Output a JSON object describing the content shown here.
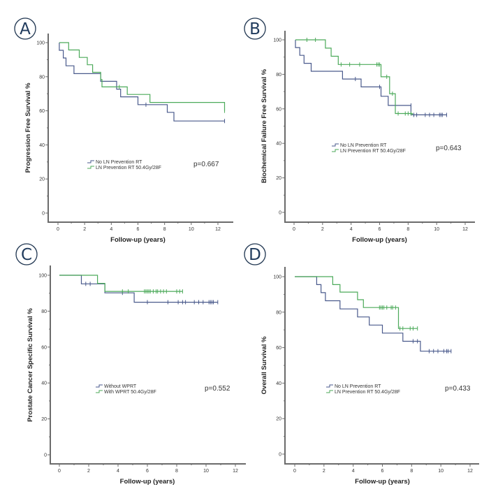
{
  "figure": {
    "colors": {
      "no_ln": "#4a5a8c",
      "ln": "#4caa5a",
      "axis": "#6b6b6b"
    }
  },
  "chart_data": [
    {
      "panel": "A",
      "type": "line",
      "subtype": "kaplan-meier",
      "title": "",
      "xlabel": "Follow-up (years)",
      "ylabel": "Progression Free Survival %",
      "xlim": [
        -0.5,
        13
      ],
      "ylim": [
        -5,
        105
      ],
      "xticks": [
        0,
        2,
        4,
        6,
        8,
        10,
        12
      ],
      "yticks": [
        0,
        20,
        40,
        60,
        80,
        100
      ],
      "legend_position": "center-left",
      "p_value": "p=0.667",
      "series": [
        {
          "name": "No LN Prevention RT",
          "color_key": "no_ln",
          "steps": [
            [
              0.1,
              100
            ],
            [
              0.1,
              95.5
            ],
            [
              0.4,
              95.5
            ],
            [
              0.4,
              91
            ],
            [
              0.6,
              91
            ],
            [
              0.6,
              86.4
            ],
            [
              1.2,
              86.4
            ],
            [
              1.2,
              81.8
            ],
            [
              3.2,
              81.8
            ],
            [
              3.2,
              77.3
            ],
            [
              4.4,
              77.3
            ],
            [
              4.4,
              72.7
            ],
            [
              4.7,
              72.7
            ],
            [
              4.7,
              68.2
            ],
            [
              6.0,
              68.2
            ],
            [
              6.0,
              63.6
            ],
            [
              8.2,
              63.6
            ],
            [
              8.2,
              59.1
            ],
            [
              8.7,
              59.1
            ],
            [
              8.7,
              54
            ],
            [
              12.5,
              54
            ]
          ],
          "censored": [
            [
              6.6,
              63.6
            ],
            [
              12.5,
              54
            ]
          ]
        },
        {
          "name": "LN Prevention RT 50.4Gy/28F",
          "color_key": "ln",
          "steps": [
            [
              0.1,
              100
            ],
            [
              0.8,
              100
            ],
            [
              0.8,
              95.7
            ],
            [
              1.6,
              95.7
            ],
            [
              1.6,
              91.3
            ],
            [
              2.2,
              91.3
            ],
            [
              2.2,
              87
            ],
            [
              2.6,
              87
            ],
            [
              2.6,
              82.6
            ],
            [
              3.2,
              82.6
            ],
            [
              3.2,
              78.3
            ],
            [
              3.3,
              78.3
            ],
            [
              3.3,
              74
            ],
            [
              5.2,
              74
            ],
            [
              5.2,
              69.6
            ],
            [
              6.9,
              69.6
            ],
            [
              6.9,
              64.9
            ],
            [
              12.5,
              64.9
            ],
            [
              12.5,
              60
            ]
          ],
          "censored": [
            [
              4.6,
              74
            ],
            [
              12.5,
              60
            ]
          ]
        }
      ]
    },
    {
      "panel": "B",
      "type": "line",
      "subtype": "kaplan-meier",
      "title": "",
      "xlabel": "Follow-up (years)",
      "ylabel": "Biochemical Failure Free Survival %",
      "xlim": [
        -0.5,
        13
      ],
      "ylim": [
        -5,
        105
      ],
      "xticks": [
        0,
        2,
        4,
        6,
        8,
        10,
        12
      ],
      "yticks": [
        0,
        20,
        40,
        60,
        80,
        100
      ],
      "legend_position": "center-left",
      "p_value": "p=0.643",
      "series": [
        {
          "name": "No LN Prevention RT",
          "color_key": "no_ln",
          "steps": [
            [
              0.1,
              100
            ],
            [
              0.1,
              95.5
            ],
            [
              0.4,
              95.5
            ],
            [
              0.4,
              91
            ],
            [
              0.7,
              91
            ],
            [
              0.7,
              86.4
            ],
            [
              1.2,
              86.4
            ],
            [
              1.2,
              81.8
            ],
            [
              3.4,
              81.8
            ],
            [
              3.4,
              77.3
            ],
            [
              4.7,
              77.3
            ],
            [
              4.7,
              72.7
            ],
            [
              6.1,
              72.7
            ],
            [
              6.1,
              67.3
            ],
            [
              6.6,
              67.3
            ],
            [
              6.6,
              62
            ],
            [
              8.2,
              62
            ],
            [
              8.2,
              56.5
            ],
            [
              10.7,
              56.5
            ]
          ],
          "censored": [
            [
              4.3,
              77.3
            ],
            [
              6.0,
              72.7
            ],
            [
              8.2,
              62
            ],
            [
              8.4,
              56.5
            ],
            [
              8.6,
              56.5
            ],
            [
              9.2,
              56.5
            ],
            [
              9.5,
              56.5
            ],
            [
              9.8,
              56.5
            ],
            [
              10.2,
              56.5
            ],
            [
              10.3,
              56.5
            ],
            [
              10.4,
              56.5
            ],
            [
              10.7,
              56.5
            ]
          ]
        },
        {
          "name": "LN Prevention RT 50.4Gy/28F",
          "color_key": "ln",
          "steps": [
            [
              0.1,
              100
            ],
            [
              2.2,
              100
            ],
            [
              2.2,
              95.2
            ],
            [
              2.6,
              95.2
            ],
            [
              2.6,
              90.5
            ],
            [
              3.1,
              90.5
            ],
            [
              3.1,
              85.7
            ],
            [
              6.1,
              85.7
            ],
            [
              6.1,
              78.6
            ],
            [
              6.7,
              78.6
            ],
            [
              6.7,
              68.8
            ],
            [
              7.1,
              68.8
            ],
            [
              7.1,
              57.3
            ],
            [
              8.3,
              57.3
            ],
            [
              8.3,
              56.5
            ]
          ],
          "censored": [
            [
              0.9,
              100
            ],
            [
              1.5,
              100
            ],
            [
              3.3,
              85.7
            ],
            [
              3.9,
              85.7
            ],
            [
              4.6,
              85.7
            ],
            [
              5.8,
              85.7
            ],
            [
              5.9,
              85.7
            ],
            [
              6.0,
              85.7
            ],
            [
              6.5,
              78.6
            ],
            [
              6.9,
              68.8
            ],
            [
              7.3,
              57.3
            ],
            [
              7.8,
              57.3
            ],
            [
              8.0,
              57.3
            ],
            [
              8.2,
              57.3
            ]
          ]
        }
      ]
    },
    {
      "panel": "C",
      "type": "line",
      "subtype": "kaplan-meier",
      "title": "",
      "xlabel": "Follow-up (years)",
      "ylabel": "Prostate Cancer Specific Survival %",
      "xlim": [
        -0.5,
        13
      ],
      "ylim": [
        -5,
        105
      ],
      "xticks": [
        0,
        2,
        4,
        6,
        8,
        10,
        12
      ],
      "yticks": [
        0,
        20,
        40,
        60,
        80,
        100
      ],
      "legend_position": "center-left",
      "p_value": "p=0.552",
      "series": [
        {
          "name": "Without WPRT",
          "color_key": "no_ln",
          "steps": [
            [
              0,
              100
            ],
            [
              1.5,
              100
            ],
            [
              1.5,
              95.2
            ],
            [
              3.1,
              95.2
            ],
            [
              3.1,
              90.2
            ],
            [
              5.1,
              90.2
            ],
            [
              5.1,
              85
            ],
            [
              10.8,
              85
            ]
          ],
          "censored": [
            [
              1.8,
              95.2
            ],
            [
              2.1,
              95.2
            ],
            [
              4.3,
              90.2
            ],
            [
              6.0,
              85
            ],
            [
              7.4,
              85
            ],
            [
              8.1,
              85
            ],
            [
              8.4,
              85
            ],
            [
              8.6,
              85
            ],
            [
              9.2,
              85
            ],
            [
              9.5,
              85
            ],
            [
              9.8,
              85
            ],
            [
              10.2,
              85
            ],
            [
              10.3,
              85
            ],
            [
              10.4,
              85
            ],
            [
              10.5,
              85
            ],
            [
              10.8,
              85
            ]
          ]
        },
        {
          "name": "With WPRT 50.4Gy/28F",
          "color_key": "ln",
          "steps": [
            [
              0,
              100
            ],
            [
              2.6,
              100
            ],
            [
              2.6,
              95.5
            ],
            [
              3.1,
              95.5
            ],
            [
              3.1,
              91
            ],
            [
              8.4,
              91
            ]
          ],
          "censored": [
            [
              4.3,
              91
            ],
            [
              4.7,
              91
            ],
            [
              5.8,
              91
            ],
            [
              5.9,
              91
            ],
            [
              6.0,
              91
            ],
            [
              6.1,
              91
            ],
            [
              6.2,
              91
            ],
            [
              6.4,
              91
            ],
            [
              6.6,
              91
            ],
            [
              6.7,
              91
            ],
            [
              6.9,
              91
            ],
            [
              7.1,
              91
            ],
            [
              7.3,
              91
            ],
            [
              8.0,
              91
            ],
            [
              8.2,
              91
            ],
            [
              8.4,
              91
            ]
          ]
        }
      ]
    },
    {
      "panel": "D",
      "type": "line",
      "subtype": "kaplan-meier",
      "title": "",
      "xlabel": "Follow-up (years)",
      "ylabel": "Overall Survival %",
      "xlim": [
        -0.5,
        13
      ],
      "ylim": [
        -5,
        105
      ],
      "xticks": [
        0,
        2,
        4,
        6,
        8,
        10,
        12
      ],
      "yticks": [
        0,
        20,
        40,
        60,
        80,
        100
      ],
      "legend_position": "center-left",
      "p_value": "p=0.433",
      "series": [
        {
          "name": "No LN Prevention RT",
          "color_key": "no_ln",
          "steps": [
            [
              0,
              100
            ],
            [
              1.5,
              100
            ],
            [
              1.5,
              95.5
            ],
            [
              1.8,
              95.5
            ],
            [
              1.8,
              91
            ],
            [
              2.1,
              91
            ],
            [
              2.1,
              86.4
            ],
            [
              3.1,
              86.4
            ],
            [
              3.1,
              81.8
            ],
            [
              4.3,
              81.8
            ],
            [
              4.3,
              77.3
            ],
            [
              5.1,
              77.3
            ],
            [
              5.1,
              72.7
            ],
            [
              6.0,
              72.7
            ],
            [
              6.0,
              68.2
            ],
            [
              7.4,
              68.2
            ],
            [
              7.4,
              63.6
            ],
            [
              8.6,
              63.6
            ],
            [
              8.6,
              58
            ],
            [
              10.7,
              58
            ]
          ],
          "censored": [
            [
              8.1,
              63.6
            ],
            [
              8.4,
              63.6
            ],
            [
              9.2,
              58
            ],
            [
              9.5,
              58
            ],
            [
              9.8,
              58
            ],
            [
              10.2,
              58
            ],
            [
              10.4,
              58
            ],
            [
              10.5,
              58
            ],
            [
              10.7,
              58
            ]
          ]
        },
        {
          "name": "LN Prevention RT 50.4Gy/28F",
          "color_key": "ln",
          "steps": [
            [
              0,
              100
            ],
            [
              2.6,
              100
            ],
            [
              2.6,
              95.5
            ],
            [
              3.1,
              95.5
            ],
            [
              3.1,
              91.3
            ],
            [
              4.3,
              91.3
            ],
            [
              4.3,
              87
            ],
            [
              4.7,
              87
            ],
            [
              4.7,
              82.6
            ],
            [
              7.1,
              82.6
            ],
            [
              7.1,
              70.8
            ],
            [
              8.4,
              70.8
            ]
          ],
          "censored": [
            [
              5.8,
              82.6
            ],
            [
              5.9,
              82.6
            ],
            [
              6.0,
              82.6
            ],
            [
              6.1,
              82.6
            ],
            [
              6.3,
              82.6
            ],
            [
              6.6,
              82.6
            ],
            [
              6.7,
              82.6
            ],
            [
              6.9,
              82.6
            ],
            [
              7.2,
              70.8
            ],
            [
              7.4,
              70.8
            ],
            [
              7.9,
              70.8
            ],
            [
              8.1,
              70.8
            ],
            [
              8.4,
              70.8
            ]
          ]
        }
      ]
    }
  ]
}
